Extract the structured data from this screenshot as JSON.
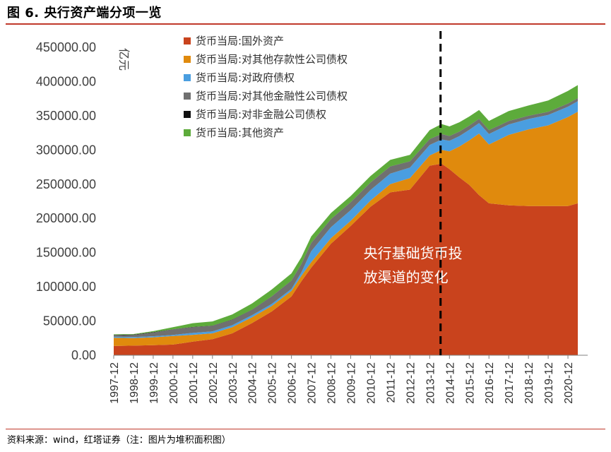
{
  "figure": {
    "title": "图 6. 央行资产端分项一览",
    "source": "资料来源：wind，红塔证券（注：图片为堆积面积图）"
  },
  "chart_data": {
    "type": "area",
    "stacked": true,
    "ylabel": "亿元",
    "ylim": [
      0,
      450000
    ],
    "yticks": [
      "0.00",
      "50000.00",
      "100000.00",
      "150000.00",
      "200000.00",
      "250000.00",
      "300000.00",
      "350000.00",
      "400000.00",
      "450000.00"
    ],
    "ytick_values": [
      0,
      50000,
      100000,
      150000,
      200000,
      250000,
      300000,
      350000,
      400000,
      450000
    ],
    "xticks": [
      "1997-12",
      "1998-12",
      "1999-12",
      "2000-12",
      "2001-12",
      "2002-12",
      "2003-12",
      "2004-12",
      "2005-12",
      "2006-12",
      "2007-12",
      "2008-12",
      "2009-12",
      "2010-12",
      "2011-12",
      "2012-12",
      "2013-12",
      "2014-12",
      "2015-12",
      "2016-12",
      "2017-12",
      "2018-12",
      "2019-12",
      "2020-12"
    ],
    "x": [
      1997.9,
      1998.9,
      1999.9,
      2000.9,
      2001.9,
      2002.9,
      2003.9,
      2004.9,
      2005.9,
      2006.9,
      2007.4,
      2007.9,
      2008.9,
      2009.9,
      2010.9,
      2011.9,
      2012.9,
      2013.9,
      2014.5,
      2014.9,
      2015.4,
      2015.9,
      2016.4,
      2016.9,
      2017.9,
      2018.9,
      2019.9,
      2020.9,
      2021.4
    ],
    "xlim": [
      1997.9,
      2021.9
    ],
    "series": [
      {
        "name": "货币当局:国外资产",
        "color": "#c9431d",
        "values": [
          13500,
          14000,
          14700,
          15600,
          19800,
          23500,
          32000,
          47000,
          64000,
          86000,
          108000,
          128000,
          163000,
          189000,
          217000,
          238000,
          242000,
          277000,
          280000,
          272000,
          260000,
          249000,
          234000,
          222000,
          219000,
          218000,
          218000,
          218000,
          222000
        ]
      },
      {
        "name": "货币当局:对其他存款性公司债权",
        "color": "#e08a0d",
        "values": [
          12000,
          11000,
          11500,
          12500,
          10000,
          8500,
          9000,
          8500,
          8000,
          8000,
          8000,
          8000,
          8000,
          7500,
          9000,
          12000,
          17000,
          15000,
          20000,
          26000,
          45000,
          65000,
          90000,
          86000,
          103000,
          112000,
          118000,
          130000,
          134000
        ]
      },
      {
        "name": "货币当局:对政府债权",
        "color": "#4a9ee0",
        "values": [
          1600,
          1600,
          1600,
          1600,
          2800,
          2900,
          2900,
          2900,
          2900,
          2900,
          5000,
          16000,
          16000,
          15600,
          15400,
          15400,
          15300,
          15300,
          15300,
          15300,
          15300,
          15300,
          15300,
          15300,
          15300,
          15200,
          15200,
          15200,
          15200
        ]
      },
      {
        "name": "货币当局:对其他金融性公司债权",
        "color": "#707070",
        "values": [
          2000,
          3000,
          5500,
          8000,
          8500,
          8200,
          8000,
          8000,
          11000,
          12000,
          12000,
          12000,
          11800,
          11500,
          11000,
          10500,
          9000,
          8500,
          8000,
          7000,
          6600,
          6500,
          6000,
          5500,
          5000,
          4700,
          4600,
          4500,
          4500
        ]
      },
      {
        "name": "货币当局:对非金融公司债权",
        "color": "#111111",
        "values": [
          500,
          500,
          400,
          300,
          300,
          300,
          300,
          200,
          200,
          200,
          200,
          100,
          100,
          100,
          100,
          100,
          100,
          100,
          100,
          100,
          100,
          100,
          100,
          100,
          100,
          100,
          100,
          100,
          100
        ]
      },
      {
        "name": "货币当局:其他资产",
        "color": "#5dab3b",
        "values": [
          900,
          900,
          1500,
          3000,
          5500,
          6000,
          7500,
          9000,
          10000,
          10500,
          9800,
          9500,
          9000,
          9000,
          9500,
          9500,
          9500,
          13000,
          14500,
          14000,
          13500,
          13000,
          13000,
          13500,
          14500,
          15000,
          16500,
          18500,
          19000
        ]
      }
    ],
    "divider": {
      "x": 2014.45,
      "style": "dashed"
    },
    "annotation": {
      "lines": [
        "央行基础货币投",
        "放渠道的变化"
      ],
      "x": 2010.55,
      "y": 150000
    }
  }
}
